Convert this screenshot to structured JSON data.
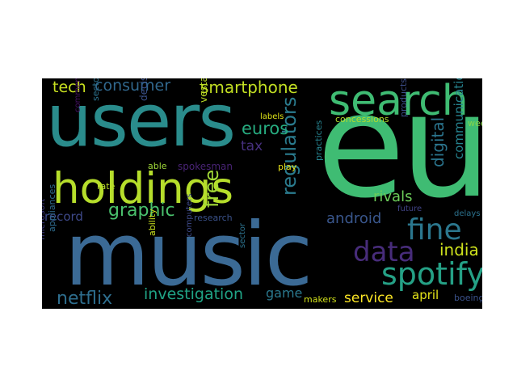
{
  "words": {
    "users": {
      "text": "users",
      "color": "#2a8c8c"
    },
    "eu": {
      "text": "eu",
      "color": "#3fbc73"
    },
    "music": {
      "text": "music",
      "color": "#3b6a95"
    },
    "search": {
      "text": "search",
      "color": "#3fbc73"
    },
    "holdings": {
      "text": "holdings",
      "color": "#b6de2b"
    },
    "spotify": {
      "text": "spotify",
      "color": "#25a186"
    },
    "fine": {
      "text": "fine",
      "color": "#2b778e"
    },
    "data": {
      "text": "data",
      "color": "#472c7a"
    },
    "consumer": {
      "text": "consumer",
      "color": "#31688e"
    },
    "smartphone": {
      "text": "smartphone",
      "color": "#c2df23"
    },
    "tech": {
      "text": "tech",
      "color": "#c8e020"
    },
    "graphic": {
      "text": "graphic",
      "color": "#4ac16d"
    },
    "regulators": {
      "text": "regulators",
      "color": "#2a7b8e"
    },
    "euros": {
      "text": "euros",
      "color": "#27ad81"
    },
    "free": {
      "text": "free",
      "color": "#a2da37"
    },
    "tax": {
      "text": "tax",
      "color": "#46307e"
    },
    "india": {
      "text": "india",
      "color": "#cde11d"
    },
    "android": {
      "text": "android",
      "color": "#39568c"
    },
    "rivals": {
      "text": "rivals",
      "color": "#6ccd5a"
    },
    "netflix": {
      "text": "netflix",
      "color": "#2e6e8e"
    },
    "investigation": {
      "text": "investigation",
      "color": "#20a486"
    },
    "service": {
      "text": "service",
      "color": "#fde725"
    },
    "april": {
      "text": "april",
      "color": "#e5e419"
    },
    "game": {
      "text": "game",
      "color": "#2a788e"
    },
    "record": {
      "text": "record",
      "color": "#3e4989"
    },
    "digital": {
      "text": "digital",
      "color": "#2b758e"
    },
    "communication": {
      "text": "communication",
      "color": "#26828e"
    },
    "sectors": {
      "text": "sectors",
      "color": "#2c728e"
    },
    "decision": {
      "text": "decision",
      "color": "#3b518b"
    },
    "vestager": {
      "text": "vestager",
      "color": "#bddf26"
    },
    "rate": {
      "text": "rate",
      "color": "#bade28"
    },
    "able": {
      "text": "able",
      "color": "#a0da39"
    },
    "spokesman": {
      "text": "spokesman",
      "color": "#482374"
    },
    "comment": {
      "text": "comment",
      "color": "#471164"
    },
    "labels": {
      "text": "labels",
      "color": "#dde318"
    },
    "concessions": {
      "text": "concessions",
      "color": "#b2dd2d"
    },
    "products": {
      "text": "products",
      "color": "#3d4e8a"
    },
    "weeks": {
      "text": "weeks",
      "color": "#86d549"
    },
    "play": {
      "text": "play",
      "color": "#e7e419"
    },
    "practices": {
      "text": "practices",
      "color": "#26828e"
    },
    "research": {
      "text": "research",
      "color": "#3b528b"
    },
    "microsoft": {
      "text": "microsoft",
      "color": "#433e85"
    },
    "appliances": {
      "text": "appliances",
      "color": "#2f6c8e"
    },
    "ability": {
      "text": "ability",
      "color": "#cae11f"
    },
    "computers": {
      "text": "computers",
      "color": "#3e4a89"
    },
    "sector": {
      "text": "sector",
      "color": "#2c738e"
    },
    "makers": {
      "text": "makers",
      "color": "#d2e21b"
    },
    "future": {
      "text": "future",
      "color": "#414487"
    },
    "delays": {
      "text": "delays",
      "color": "#2c728e"
    },
    "boeing": {
      "text": "boeing",
      "color": "#3b528b"
    }
  }
}
